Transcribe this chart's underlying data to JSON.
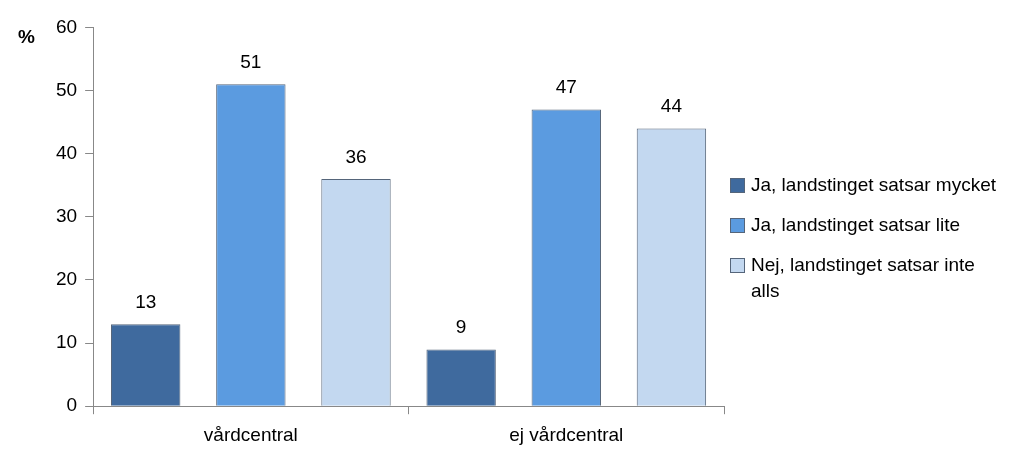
{
  "chart_data": {
    "type": "bar",
    "ylabel": "%",
    "categories": [
      "vårdcentral",
      "ej vårdcentral"
    ],
    "series": [
      {
        "name": "Ja, landstinget satsar mycket",
        "color": "#3f6a9e",
        "values": [
          13,
          9
        ]
      },
      {
        "name": "Ja, landstinget satsar lite",
        "color": "#5b9be0",
        "values": [
          51,
          47
        ]
      },
      {
        "name": "Nej, landstinget satsar inte alls",
        "color": "#c3d8f0",
        "values": [
          36,
          44
        ]
      }
    ],
    "ylim": [
      0,
      60
    ],
    "yticks": [
      0,
      10,
      20,
      30,
      40,
      50,
      60
    ],
    "grid": false,
    "legend": "right",
    "data_labels": true
  }
}
